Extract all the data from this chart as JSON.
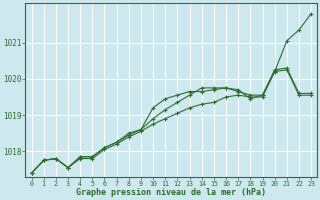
{
  "title": "Graphe pression niveau de la mer (hPa)",
  "background_color": "#cee8ef",
  "grid_color": "#ffffff",
  "line_color": "#2d6e2d",
  "xlim": [
    -0.5,
    23.5
  ],
  "ylim": [
    1017.3,
    1022.1
  ],
  "yticks": [
    1018,
    1019,
    1020,
    1021
  ],
  "xticks": [
    0,
    1,
    2,
    3,
    4,
    5,
    6,
    7,
    8,
    9,
    10,
    11,
    12,
    13,
    14,
    15,
    16,
    17,
    18,
    19,
    20,
    21,
    22,
    23
  ],
  "series": [
    [
      1017.4,
      1017.75,
      1017.8,
      1017.55,
      1017.8,
      1017.8,
      1018.05,
      1018.2,
      1018.4,
      1018.55,
      1018.75,
      1018.9,
      1019.05,
      1019.2,
      1019.3,
      1019.35,
      1019.5,
      1019.55,
      1019.5,
      1019.5,
      1020.2,
      1021.05,
      1021.35,
      1021.8
    ],
    [
      1017.4,
      1017.75,
      1017.8,
      1017.55,
      1017.85,
      1017.85,
      1018.1,
      1018.25,
      1018.5,
      1018.6,
      1019.2,
      1019.45,
      1019.55,
      1019.65,
      1019.65,
      1019.7,
      1019.75,
      1019.65,
      1019.55,
      1019.55,
      1020.2,
      1020.25,
      1019.55,
      1019.55
    ],
    [
      1017.4,
      1017.75,
      1017.8,
      1017.55,
      1017.85,
      1017.85,
      1018.1,
      1018.25,
      1018.45,
      1018.6,
      1018.9,
      1019.15,
      1019.35,
      1019.55,
      1019.75,
      1019.75,
      1019.75,
      1019.7,
      1019.45,
      1019.55,
      1020.25,
      1020.3,
      1019.6,
      1019.6
    ]
  ]
}
